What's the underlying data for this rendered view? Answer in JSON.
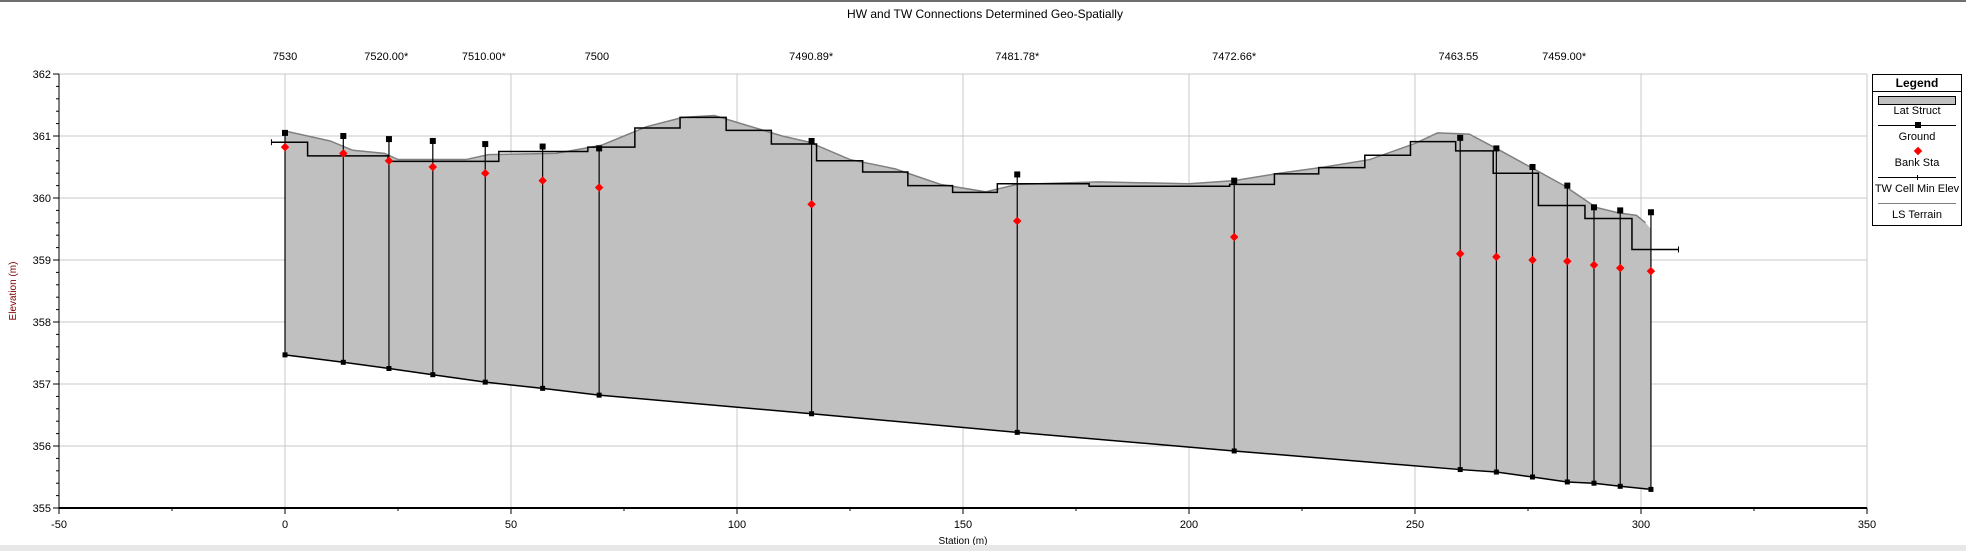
{
  "chart_data": {
    "type": "line",
    "title": "HW and TW Connections Determined Geo-Spatially",
    "xlabel": "Station (m)",
    "ylabel": "Elevation (m)",
    "xlim": [
      -50,
      350
    ],
    "ylim": [
      355,
      362
    ],
    "xticks": [
      -50,
      0,
      50,
      100,
      150,
      200,
      250,
      300,
      350
    ],
    "yticks": [
      355,
      356,
      357,
      358,
      359,
      360,
      361,
      362
    ],
    "grid": true,
    "legend_position": "right",
    "colors": {
      "fill": "#c0c0c0",
      "bank": "#ff0000",
      "line": "#000000",
      "terrain": "#808080",
      "grid": "#c8c8c8"
    },
    "xs_labels": [
      {
        "label": "7530",
        "station": 0
      },
      {
        "label": "7520.00*",
        "station": 22.4
      },
      {
        "label": "7510.00*",
        "station": 44
      },
      {
        "label": "7500",
        "station": 69
      },
      {
        "label": "7490.89*",
        "station": 116.4
      },
      {
        "label": "7481.78*",
        "station": 162
      },
      {
        "label": "7472.66*",
        "station": 210
      },
      {
        "label": "7463.55",
        "station": 259.6
      },
      {
        "label": "7459.00*",
        "station": 283
      }
    ],
    "connections": {
      "station": [
        0,
        12.9,
        23,
        32.7,
        44.3,
        57,
        69.5,
        116.5,
        162,
        210,
        260,
        268,
        276,
        283.7,
        289.6,
        295.4,
        302.2
      ],
      "ground": [
        361.05,
        361.0,
        360.95,
        360.92,
        360.87,
        360.83,
        360.8,
        360.92,
        360.38,
        360.28,
        360.97,
        360.8,
        360.5,
        360.2,
        359.85,
        359.8,
        359.77
      ],
      "bank_sta": [
        360.82,
        360.72,
        360.6,
        360.5,
        360.4,
        360.28,
        360.17,
        359.9,
        359.63,
        359.37,
        359.1,
        359.05,
        359.0,
        358.98,
        358.92,
        358.87,
        358.82
      ],
      "tw_cell_min_elev": [
        357.47,
        357.35,
        357.25,
        357.15,
        357.03,
        356.93,
        356.82,
        356.52,
        356.22,
        355.92,
        355.62,
        355.58,
        355.5,
        355.42,
        355.4,
        355.35,
        355.3
      ]
    },
    "lat_struct_steps": [
      [
        -3,
        5,
        360.9
      ],
      [
        5,
        22.8,
        360.68
      ],
      [
        22.8,
        47.3,
        360.59
      ],
      [
        47.3,
        67,
        360.75
      ],
      [
        67,
        77.4,
        360.82
      ],
      [
        77.4,
        87.4,
        361.13
      ],
      [
        87.4,
        97.6,
        361.3
      ],
      [
        97.6,
        107.6,
        361.09
      ],
      [
        107.6,
        117.6,
        360.87
      ],
      [
        117.6,
        127.8,
        360.6
      ],
      [
        127.8,
        137.8,
        360.42
      ],
      [
        137.8,
        147.7,
        360.2
      ],
      [
        147.7,
        157.6,
        360.09
      ],
      [
        157.6,
        177.9,
        360.23
      ],
      [
        177.9,
        209,
        360.19
      ],
      [
        209,
        218.9,
        360.22
      ],
      [
        218.9,
        228.7,
        360.39
      ],
      [
        228.7,
        238.9,
        360.49
      ],
      [
        238.9,
        249,
        360.69
      ],
      [
        249,
        259,
        360.91
      ],
      [
        259,
        267.3,
        360.76
      ],
      [
        267.3,
        277.3,
        360.4
      ],
      [
        277.3,
        287.6,
        359.88
      ],
      [
        287.6,
        298,
        359.67
      ],
      [
        298,
        308.3,
        359.17
      ]
    ],
    "ls_terrain": [
      [
        0,
        361.08
      ],
      [
        5,
        361.0
      ],
      [
        10,
        360.92
      ],
      [
        15,
        360.77
      ],
      [
        22,
        360.72
      ],
      [
        25,
        360.62
      ],
      [
        40,
        360.62
      ],
      [
        45,
        360.7
      ],
      [
        60,
        360.72
      ],
      [
        70,
        360.85
      ],
      [
        75,
        361.0
      ],
      [
        80,
        361.15
      ],
      [
        88,
        361.3
      ],
      [
        95,
        361.33
      ],
      [
        100,
        361.22
      ],
      [
        110,
        361.0
      ],
      [
        116,
        360.9
      ],
      [
        125,
        360.62
      ],
      [
        135,
        360.47
      ],
      [
        145,
        360.22
      ],
      [
        155,
        360.1
      ],
      [
        162,
        360.22
      ],
      [
        180,
        360.26
      ],
      [
        200,
        360.23
      ],
      [
        210,
        360.28
      ],
      [
        220,
        360.4
      ],
      [
        230,
        360.5
      ],
      [
        240,
        360.62
      ],
      [
        250,
        360.88
      ],
      [
        255,
        361.05
      ],
      [
        262,
        361.03
      ],
      [
        268,
        360.8
      ],
      [
        275,
        360.52
      ],
      [
        283,
        360.2
      ],
      [
        290,
        359.85
      ],
      [
        295,
        359.76
      ],
      [
        299,
        359.72
      ],
      [
        301,
        359.6
      ]
    ],
    "legend": [
      "Lat Struct",
      "Ground",
      "Bank Sta",
      "TW Cell Min Elev",
      "LS Terrain"
    ]
  }
}
